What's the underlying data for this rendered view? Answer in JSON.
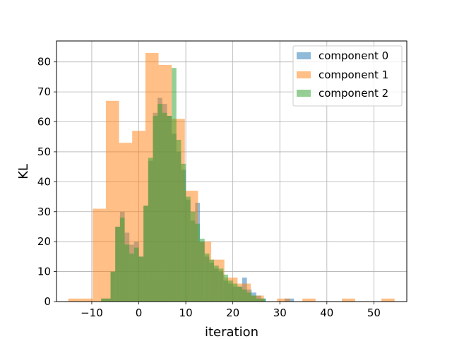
{
  "chart_data": {
    "type": "histogram",
    "title": "",
    "xlabel": "iteration",
    "ylabel": "KL",
    "xlim": [
      -17.5,
      57.0
    ],
    "ylim": [
      0,
      87
    ],
    "xticks": [
      -10,
      0,
      10,
      20,
      30,
      40,
      50
    ],
    "xtick_labels": [
      "−10",
      "0",
      "10",
      "20",
      "30",
      "40",
      "50"
    ],
    "yticks": [
      0,
      10,
      20,
      30,
      40,
      50,
      60,
      70,
      80
    ],
    "ytick_labels": [
      "0",
      "10",
      "20",
      "30",
      "40",
      "50",
      "60",
      "70",
      "80"
    ],
    "grid": true,
    "legend_position": "top-right",
    "series": [
      {
        "name": "component 0",
        "color": "#1f77b4",
        "bins": [
          [
            -8,
            -7,
            1
          ],
          [
            -7,
            -6,
            1
          ],
          [
            -6,
            -5,
            10
          ],
          [
            -5,
            -4,
            25
          ],
          [
            -4,
            -3,
            30
          ],
          [
            -3,
            -2,
            23
          ],
          [
            -2,
            -1,
            19
          ],
          [
            -1,
            0,
            20
          ],
          [
            0,
            1,
            15
          ],
          [
            1,
            2,
            32
          ],
          [
            2,
            3,
            47
          ],
          [
            3,
            4,
            63
          ],
          [
            4,
            5,
            68
          ],
          [
            5,
            6,
            66
          ],
          [
            6,
            7,
            62
          ],
          [
            7,
            8,
            56
          ],
          [
            8,
            9,
            50
          ],
          [
            9,
            10,
            44
          ],
          [
            10,
            11,
            34
          ],
          [
            11,
            12,
            27
          ],
          [
            12,
            13,
            33
          ],
          [
            13,
            14,
            20
          ],
          [
            14,
            15,
            15
          ],
          [
            15,
            16,
            13
          ],
          [
            16,
            17,
            11
          ],
          [
            17,
            18,
            10
          ],
          [
            18,
            19,
            7
          ],
          [
            19,
            20,
            6
          ],
          [
            20,
            21,
            5
          ],
          [
            21,
            22,
            5
          ],
          [
            22,
            23,
            8
          ],
          [
            23,
            24,
            4
          ],
          [
            24,
            25,
            3
          ],
          [
            25,
            26,
            2
          ],
          [
            26,
            27,
            1
          ],
          [
            31,
            32,
            1
          ],
          [
            32,
            33,
            1
          ]
        ]
      },
      {
        "name": "component 1",
        "color": "#ff7f0e",
        "bins": [
          [
            -15,
            -9.8,
            1
          ],
          [
            -9.8,
            -7,
            31
          ],
          [
            -7,
            -4.2,
            67
          ],
          [
            -4.2,
            -1.4,
            53
          ],
          [
            -1.4,
            1.4,
            57
          ],
          [
            1.4,
            4.2,
            83
          ],
          [
            4.2,
            7,
            79
          ],
          [
            7,
            9.8,
            61
          ],
          [
            9.8,
            12.6,
            37
          ],
          [
            12.6,
            15.4,
            20
          ],
          [
            15.4,
            18.2,
            14
          ],
          [
            18.2,
            21,
            8
          ],
          [
            21,
            23.8,
            6
          ],
          [
            23.8,
            26.6,
            2
          ],
          [
            29.4,
            32.2,
            1
          ],
          [
            34.8,
            37.6,
            1
          ],
          [
            43.2,
            46,
            1
          ],
          [
            51.6,
            54.4,
            1
          ]
        ]
      },
      {
        "name": "component 2",
        "color": "#2ca02c",
        "bins": [
          [
            -8,
            -7,
            1
          ],
          [
            -7,
            -6,
            1
          ],
          [
            -6,
            -5,
            10
          ],
          [
            -5,
            -4,
            25
          ],
          [
            -4,
            -3,
            28
          ],
          [
            -3,
            -2,
            19
          ],
          [
            -2,
            -1,
            16
          ],
          [
            -1,
            0,
            18
          ],
          [
            0,
            1,
            15
          ],
          [
            1,
            2,
            32
          ],
          [
            2,
            3,
            48
          ],
          [
            3,
            4,
            62
          ],
          [
            4,
            5,
            66
          ],
          [
            5,
            6,
            63
          ],
          [
            6,
            7,
            62
          ],
          [
            7,
            8,
            78
          ],
          [
            8,
            9,
            54
          ],
          [
            9,
            10,
            46
          ],
          [
            10,
            11,
            35
          ],
          [
            11,
            12,
            30
          ],
          [
            12,
            13,
            26
          ],
          [
            13,
            14,
            21
          ],
          [
            14,
            15,
            16
          ],
          [
            15,
            16,
            14
          ],
          [
            16,
            17,
            12
          ],
          [
            17,
            18,
            11
          ],
          [
            18,
            19,
            9
          ],
          [
            19,
            20,
            7
          ],
          [
            20,
            21,
            6
          ],
          [
            21,
            22,
            5
          ],
          [
            22,
            23,
            4
          ],
          [
            23,
            24,
            3
          ],
          [
            24,
            25,
            2
          ],
          [
            25,
            26,
            1
          ],
          [
            26,
            27,
            1
          ]
        ]
      }
    ]
  }
}
